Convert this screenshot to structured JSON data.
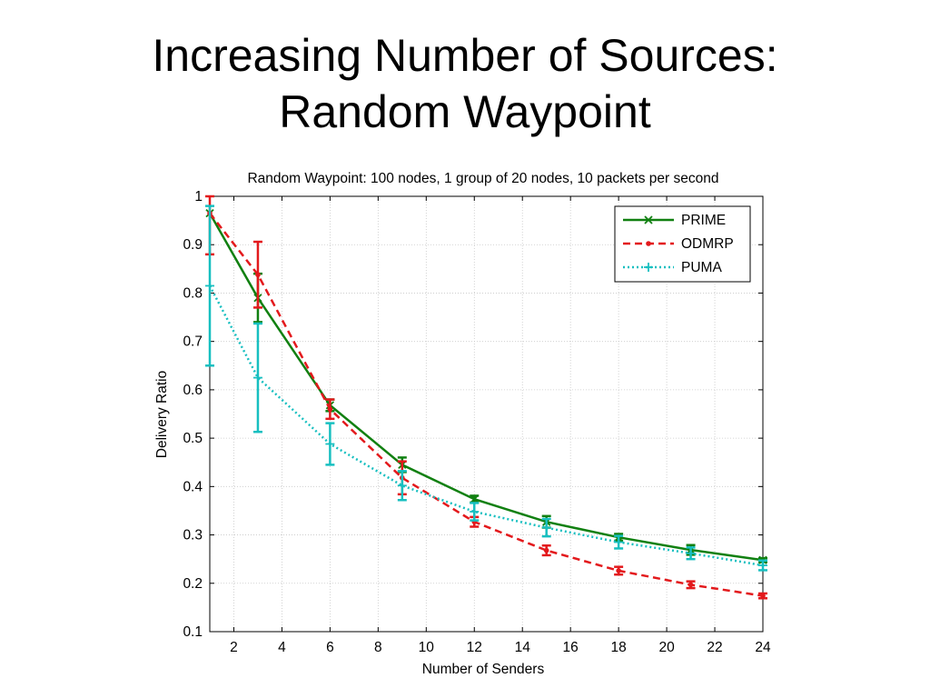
{
  "slide": {
    "title_line1": "Increasing Number of Sources:",
    "title_line2": "Random Waypoint"
  },
  "chart_data": {
    "type": "line",
    "title": "Random Waypoint: 100 nodes, 1 group of 20 nodes, 10 packets per second",
    "xlabel": "Number of Senders",
    "ylabel": "Delivery Ratio",
    "xlim": [
      1,
      24
    ],
    "ylim": [
      0.1,
      1
    ],
    "xticks": [
      2,
      4,
      6,
      8,
      10,
      12,
      14,
      16,
      18,
      20,
      22,
      24
    ],
    "yticks": [
      0.1,
      0.2,
      0.3,
      0.4,
      0.5,
      0.6,
      0.7,
      0.8,
      0.9,
      1
    ],
    "ytick_labels": [
      "0.1",
      "0.2",
      "0.3",
      "0.4",
      "0.5",
      "0.6",
      "0.7",
      "0.8",
      "0.9",
      "1"
    ],
    "grid": true,
    "legend_position": "top-right",
    "series": [
      {
        "name": "PRIME",
        "color": "#118011",
        "style": "solid",
        "marker": "x",
        "x": [
          1,
          3,
          6,
          9,
          12,
          15,
          18,
          21,
          24
        ],
        "y": [
          0.965,
          0.79,
          0.568,
          0.445,
          0.374,
          0.327,
          0.295,
          0.269,
          0.248
        ],
        "err": [
          0.0,
          0.05,
          0.012,
          0.015,
          0.007,
          0.012,
          0.007,
          0.01,
          0.004
        ]
      },
      {
        "name": "ODMRP",
        "color": "#e3191c",
        "style": "dashed",
        "marker": "dot",
        "x": [
          1,
          3,
          6,
          9,
          12,
          15,
          18,
          21,
          24
        ],
        "y": [
          0.965,
          0.838,
          0.56,
          0.418,
          0.327,
          0.268,
          0.226,
          0.197,
          0.174
        ],
        "err": [
          0.085,
          0.068,
          0.02,
          0.034,
          0.01,
          0.01,
          0.008,
          0.007,
          0.005
        ]
      },
      {
        "name": "PUMA",
        "color": "#17bfc0",
        "style": "dotted",
        "marker": "+",
        "x": [
          1,
          3,
          6,
          9,
          12,
          15,
          18,
          21,
          24
        ],
        "y": [
          0.815,
          0.625,
          0.488,
          0.402,
          0.348,
          0.315,
          0.285,
          0.262,
          0.237
        ],
        "err": [
          0.165,
          0.112,
          0.043,
          0.03,
          0.018,
          0.018,
          0.013,
          0.012,
          0.01
        ]
      }
    ]
  }
}
